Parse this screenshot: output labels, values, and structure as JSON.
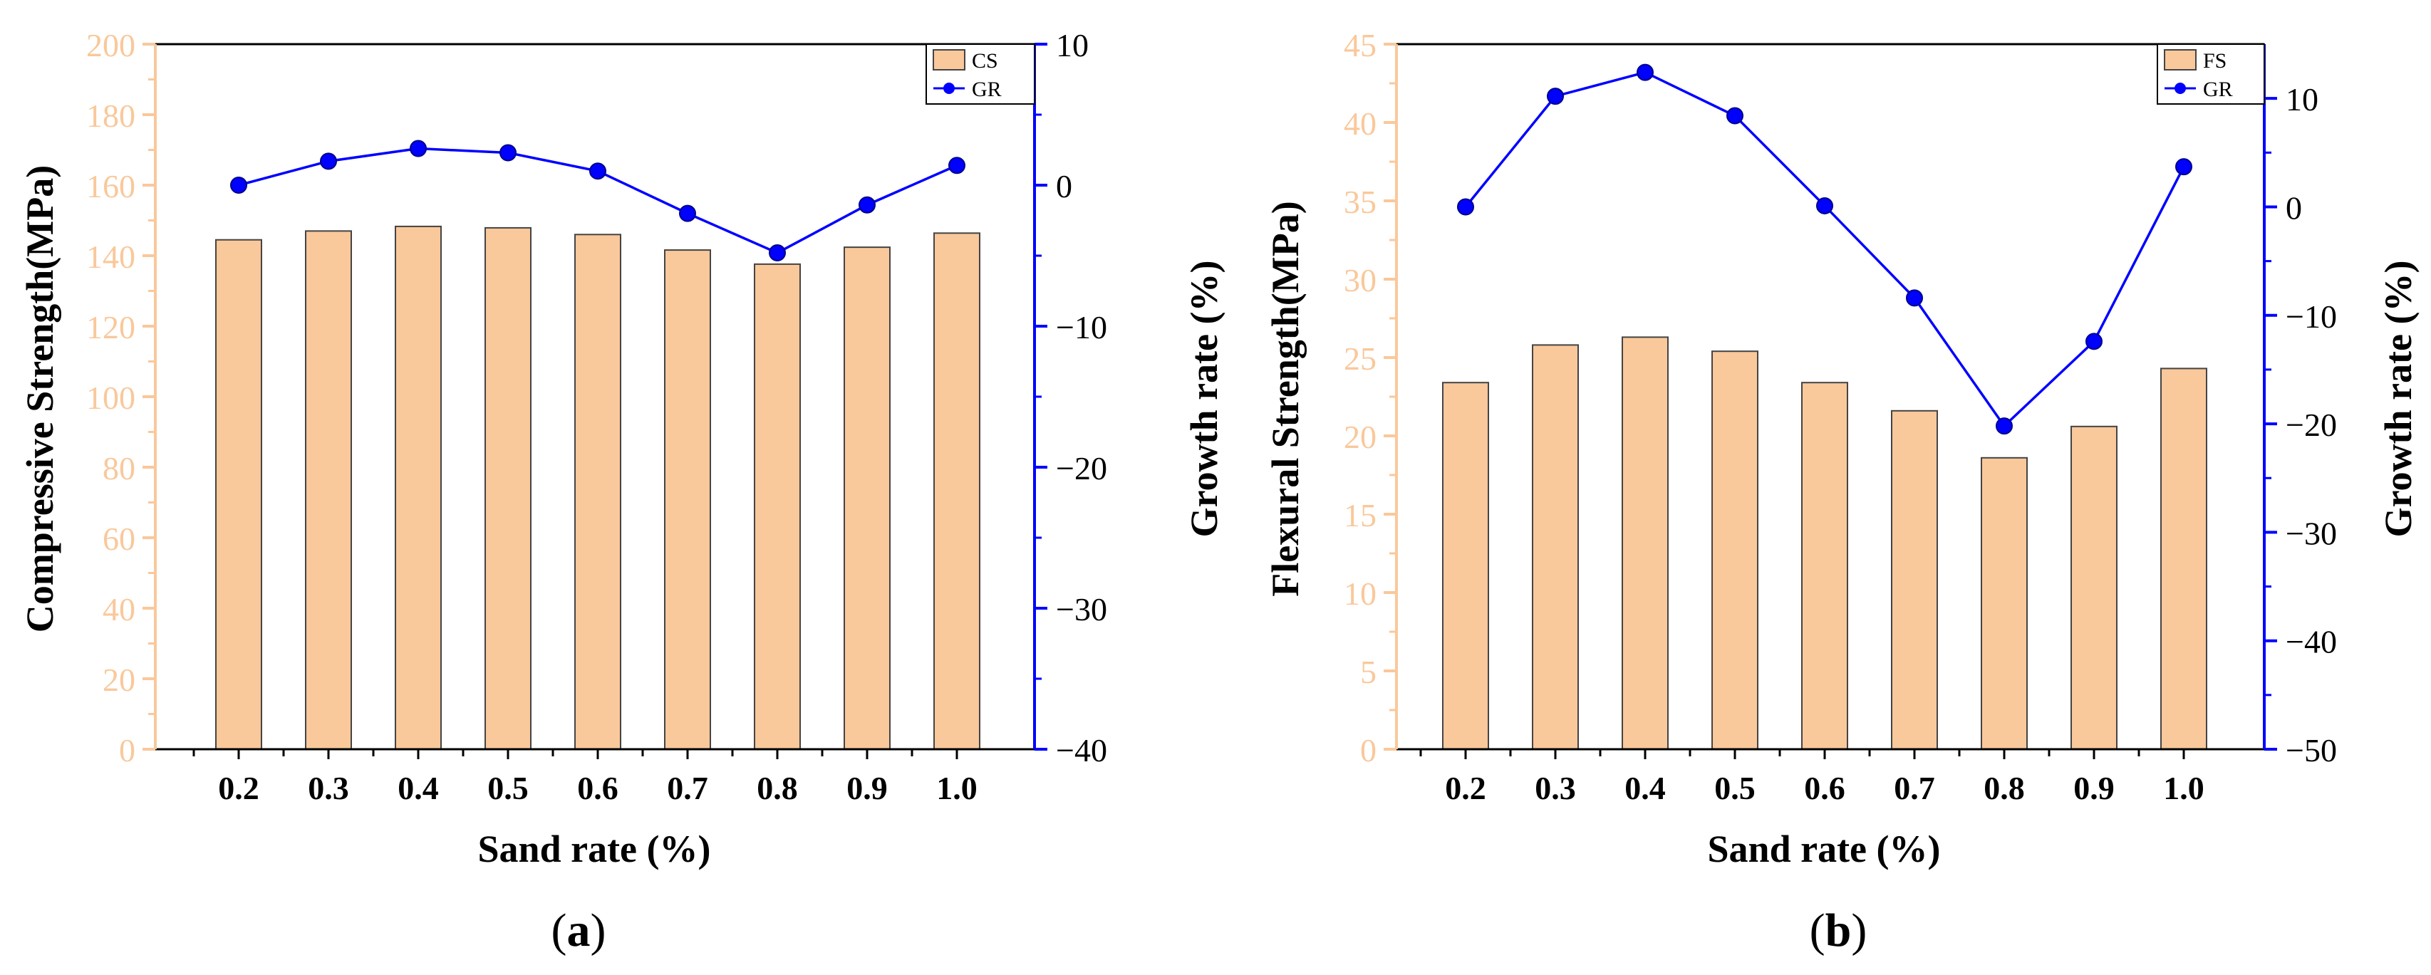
{
  "colors": {
    "bar_fill": "#f9c89b",
    "bar_stroke": "#444444",
    "left_axis": "#f9c89b",
    "right_axis": "#0000ff",
    "line": "#0000ff",
    "axis_text": "#000000"
  },
  "chart_data": [
    {
      "type": "bar+line",
      "panel_label": "a",
      "title": "",
      "xlabel": "Sand rate (%)",
      "ylabel_left": "Compressive Strength(MPa)",
      "ylabel_right": "Growth rate (%)",
      "categories": [
        "0.2",
        "0.3",
        "0.4",
        "0.5",
        "0.6",
        "0.7",
        "0.8",
        "0.9",
        "1.0"
      ],
      "ylim_left": [
        0,
        200
      ],
      "yticks_left": [
        0,
        20,
        40,
        60,
        80,
        100,
        120,
        140,
        160,
        180,
        200
      ],
      "ylim_right": [
        -40,
        10
      ],
      "yticks_right": [
        -40,
        -30,
        -20,
        -10,
        0,
        10
      ],
      "right_tick_labels": [
        "−40",
        "−30",
        "−20",
        "−10",
        "0",
        "10"
      ],
      "legend": {
        "position": "top-right",
        "entries": [
          "CS",
          "GR"
        ]
      },
      "series": [
        {
          "name": "CS",
          "kind": "bar",
          "axis": "left",
          "values": [
            144.5,
            147,
            148.3,
            147.9,
            146,
            141.6,
            137.6,
            142.4,
            146.4
          ]
        },
        {
          "name": "GR",
          "kind": "line",
          "axis": "right",
          "values": [
            0,
            1.7,
            2.6,
            2.3,
            1.0,
            -2.0,
            -4.8,
            -1.4,
            1.4
          ]
        }
      ]
    },
    {
      "type": "bar+line",
      "panel_label": "b",
      "title": "",
      "xlabel": "Sand rate (%)",
      "ylabel_left": "Flexural Strength(MPa)",
      "ylabel_right": "Growth rate (%)",
      "categories": [
        "0.2",
        "0.3",
        "0.4",
        "0.5",
        "0.6",
        "0.7",
        "0.8",
        "0.9",
        "1.0"
      ],
      "ylim_left": [
        0,
        45
      ],
      "yticks_left": [
        0,
        5,
        10,
        15,
        20,
        25,
        30,
        35,
        40,
        45
      ],
      "ylim_right": [
        -50,
        15
      ],
      "yticks_right": [
        -50,
        -40,
        -30,
        -20,
        -10,
        0,
        10
      ],
      "right_tick_labels": [
        "−50",
        "−40",
        "−30",
        "−20",
        "−10",
        "0",
        "10"
      ],
      "legend": {
        "position": "top-right",
        "entries": [
          "FS",
          "GR"
        ]
      },
      "series": [
        {
          "name": "FS",
          "kind": "bar",
          "axis": "left",
          "values": [
            23.4,
            25.8,
            26.3,
            25.4,
            23.4,
            21.6,
            18.6,
            20.6,
            24.3
          ]
        },
        {
          "name": "GR",
          "kind": "line",
          "axis": "right",
          "values": [
            0,
            10.2,
            12.4,
            8.4,
            0.1,
            -8.4,
            -20.2,
            -12.4,
            3.7
          ]
        }
      ]
    }
  ]
}
